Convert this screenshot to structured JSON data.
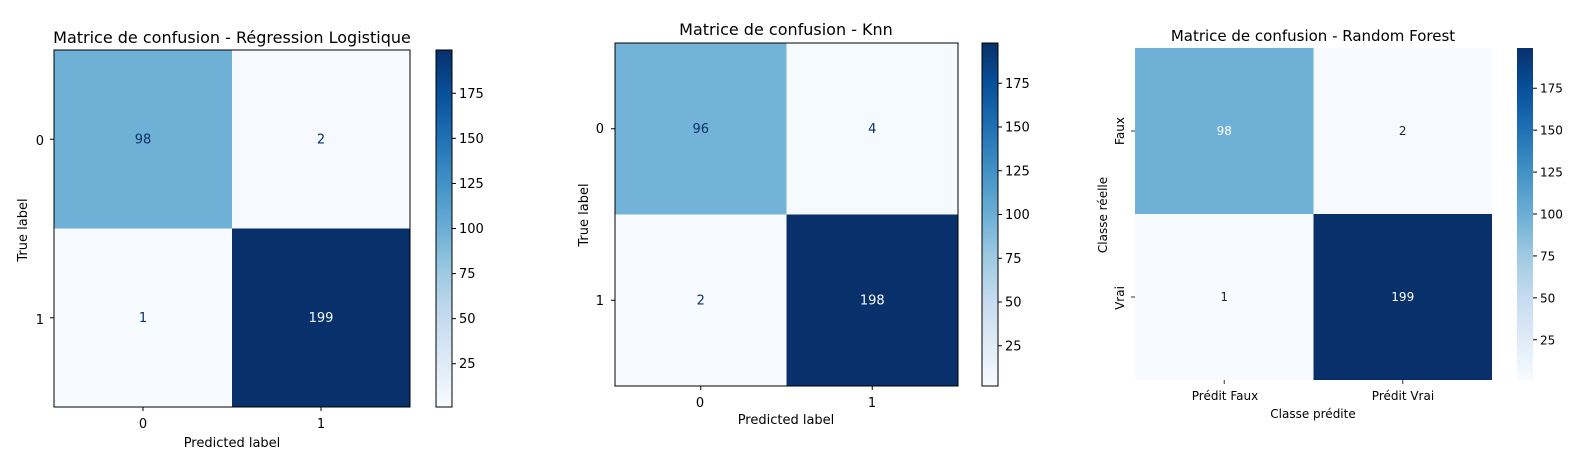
{
  "chart_data": [
    {
      "type": "heatmap",
      "title": "Matrice de confusion - Régression Logistique",
      "xlabel": "Predicted label",
      "ylabel": "True label",
      "xticklabels": [
        "0",
        "1"
      ],
      "yticklabels": [
        "0",
        "1"
      ],
      "values": [
        [
          98,
          2
        ],
        [
          1,
          199
        ]
      ],
      "colormap": "Blues",
      "colorbar_ticks": [
        25,
        50,
        75,
        100,
        125,
        150,
        175
      ]
    },
    {
      "type": "heatmap",
      "title": "Matrice de confusion - Knn",
      "xlabel": "Predicted label",
      "ylabel": "True label",
      "xticklabels": [
        "0",
        "1"
      ],
      "yticklabels": [
        "0",
        "1"
      ],
      "values": [
        [
          96,
          4
        ],
        [
          2,
          198
        ]
      ],
      "colormap": "Blues",
      "colorbar_ticks": [
        25,
        50,
        75,
        100,
        125,
        150,
        175
      ]
    },
    {
      "type": "heatmap",
      "title": "Matrice de confusion - Random Forest",
      "xlabel": "Classe prédite",
      "ylabel": "Classe réelle",
      "xticklabels": [
        "Prédit Faux",
        "Prédit Vrai"
      ],
      "yticklabels": [
        "Faux",
        "Vrai"
      ],
      "values": [
        [
          98,
          2
        ],
        [
          1,
          199
        ]
      ],
      "colormap": "Blues",
      "colorbar_ticks": [
        25,
        50,
        75,
        100,
        125,
        150,
        175
      ]
    }
  ]
}
